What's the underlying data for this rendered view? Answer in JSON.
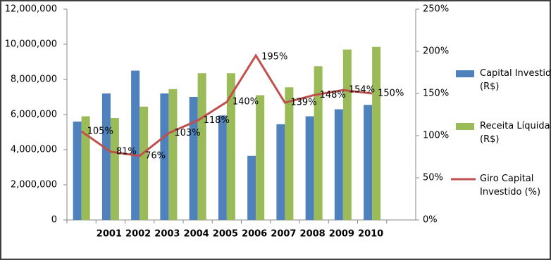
{
  "chart_data": {
    "type": "bar-line",
    "categories": [
      null,
      "2001",
      "2002",
      "2003",
      "2004",
      "2005",
      "2006",
      "2007",
      "2008",
      "2009",
      "2010",
      null
    ],
    "series": [
      {
        "name": "Capital Investido (R$)",
        "color": "#4f81bd",
        "values": [
          5600000,
          7200000,
          8500000,
          7200000,
          7000000,
          5950000,
          3650000,
          5450000,
          5900000,
          6300000,
          6550000,
          null
        ]
      },
      {
        "name": "Receita Líquida (R$)",
        "color": "#9bbb59",
        "values": [
          5900000,
          5800000,
          6450000,
          7450000,
          8350000,
          8350000,
          7100000,
          7550000,
          8750000,
          9700000,
          9850000,
          null
        ]
      },
      {
        "name": "Giro Capital Investido (%)",
        "color": "#c0504d",
        "axis": "y2",
        "values": [
          105,
          81,
          76,
          103,
          118,
          140,
          195,
          139,
          148,
          154,
          150,
          null
        ],
        "value_labels": [
          "105%",
          "81%",
          "76%",
          "103%",
          "118%",
          "140%",
          "195%",
          "139%",
          "148%",
          "154%",
          "150%",
          null
        ]
      }
    ],
    "ylim": [
      0,
      12000000
    ],
    "yticks": [
      0,
      {
        "value": 2000000,
        "label": "2,000,000"
      },
      {
        "value": 4000000,
        "label": "4,000,000"
      },
      {
        "value": 6000000,
        "label": "6,000,000"
      },
      {
        "value": 8000000,
        "label": "8,000,000"
      },
      {
        "value": 10000000,
        "label": "10,000,000"
      },
      {
        "value": 12000000,
        "label": "12,000,000"
      }
    ],
    "y2lim": [
      0,
      250
    ],
    "y2ticks": [
      {
        "value": 0,
        "label": "0%"
      },
      {
        "value": 50,
        "label": "50%"
      },
      {
        "value": 100,
        "label": "100%"
      },
      {
        "value": 150,
        "label": "150%"
      },
      {
        "value": 200,
        "label": "200%"
      },
      {
        "value": 250,
        "label": "250%"
      }
    ],
    "legend": "right"
  }
}
